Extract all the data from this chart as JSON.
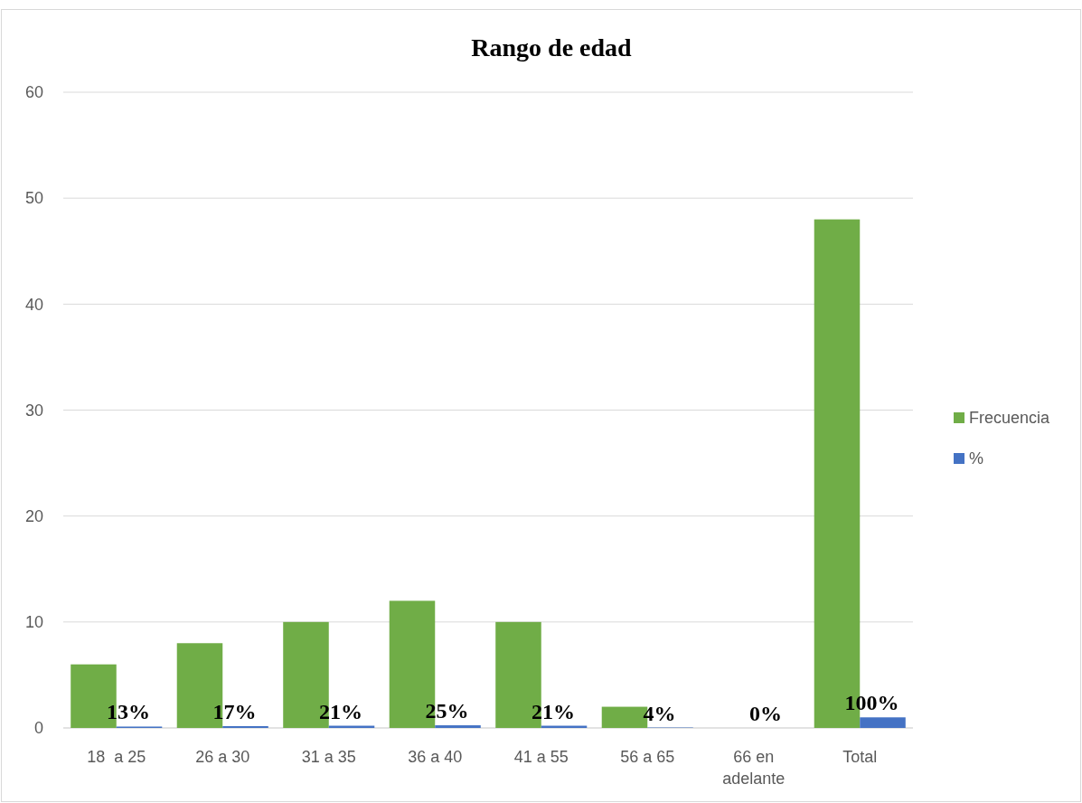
{
  "chart_data": {
    "type": "bar",
    "title": "Rango de edad",
    "categories": [
      "18  a 25",
      "26 a 30",
      "31 a 35",
      "36 a 40",
      "41 a 55",
      "56 a 65",
      "66 en adelante",
      "Total"
    ],
    "series": [
      {
        "name": "Frecuencia",
        "color": "#70ad47",
        "values": [
          6,
          8,
          10,
          12,
          10,
          2,
          0,
          48
        ]
      },
      {
        "name": "%",
        "color": "#4472c4",
        "values": [
          0.13,
          0.17,
          0.21,
          0.25,
          0.21,
          0.04,
          0,
          1
        ],
        "value_labels": [
          "13%",
          "17%",
          "21%",
          "25%",
          "21%",
          "4%",
          "0%",
          "100%"
        ]
      }
    ],
    "ylim": [
      0,
      60
    ],
    "yticks": [
      0,
      10,
      20,
      30,
      40,
      50,
      60
    ],
    "grid": "y",
    "legend": "right"
  }
}
